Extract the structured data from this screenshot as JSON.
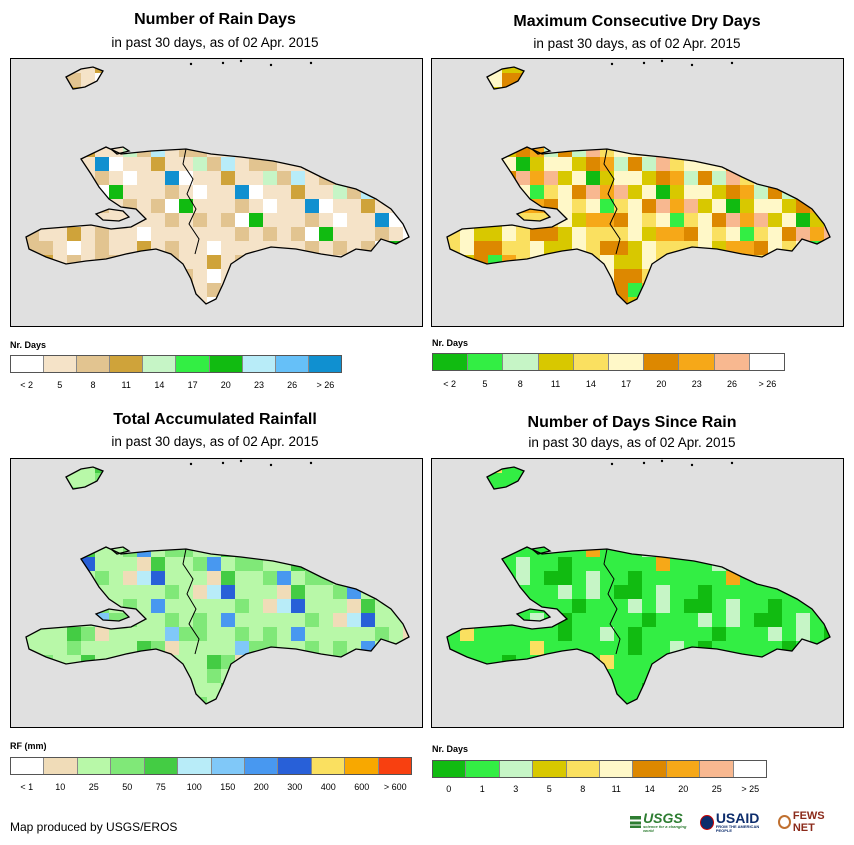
{
  "panels": [
    {
      "id": "rain-days",
      "title": "Number of Rain Days",
      "subtitle": "in past 30 days, as of 02 Apr. 2015",
      "legend_label": "Nr. Days",
      "legend_colors": [
        "#ffffff",
        "#f5e3c8",
        "#e2c490",
        "#cfa33a",
        "#c6f5c6",
        "#33ee44",
        "#11bb11",
        "#b8ecf8",
        "#66c0f8",
        "#1090d0"
      ],
      "legend_ticks": [
        "< 2",
        "5",
        "8",
        "11",
        "14",
        "17",
        "20",
        "23",
        "26",
        "> 26"
      ],
      "cell_palette": [
        "#ffffff",
        "#f5e3c8",
        "#e2c490",
        "#cfa33a",
        "#c6f5c6",
        "#33ee44",
        "#11bb11",
        "#b8ecf8",
        "#1090d0"
      ],
      "pattern": [
        1,
        1,
        2,
        1,
        1,
        2,
        1,
        0,
        1,
        1,
        2,
        3,
        1,
        1,
        1,
        0,
        2,
        1,
        1,
        1,
        3,
        2,
        1,
        1,
        0,
        1,
        2,
        1,
        1,
        1,
        2,
        1,
        4,
        1,
        2,
        1,
        1,
        0,
        1,
        2,
        1,
        1,
        3,
        1,
        6,
        8,
        7,
        5,
        2,
        1,
        1,
        1,
        0,
        1,
        1,
        2,
        2,
        1,
        1,
        1,
        2,
        0
      ]
    },
    {
      "id": "dry-days",
      "title": "Maximum Consecutive Dry Days",
      "subtitle": "in past 30 days, as of 02 Apr. 2015",
      "legend_label": "Nr. Days",
      "legend_colors": [
        "#11bb11",
        "#33ee44",
        "#c6f5c6",
        "#d8c800",
        "#fae060",
        "#fff8c8",
        "#dd8800",
        "#f6a818",
        "#f8b890",
        "#ffffff"
      ],
      "legend_ticks": [
        "< 2",
        "5",
        "8",
        "11",
        "14",
        "17",
        "20",
        "23",
        "26",
        "> 26"
      ],
      "cell_palette": [
        "#11bb11",
        "#33ee44",
        "#c6f5c6",
        "#d8c800",
        "#fae060",
        "#fff8c8",
        "#dd8800",
        "#f6a818",
        "#f8b890",
        "#ffffff"
      ],
      "pattern": [
        6,
        6,
        7,
        6,
        5,
        5,
        4,
        6,
        6,
        7,
        8,
        3,
        5,
        5,
        4,
        3,
        6,
        7,
        6,
        5,
        3,
        4,
        5,
        5,
        8,
        7,
        6,
        6,
        5,
        4,
        4,
        3,
        2,
        0,
        1,
        3,
        4,
        5,
        5,
        6,
        8,
        7,
        3,
        4,
        1,
        0,
        2,
        3,
        4,
        5,
        5,
        4,
        3,
        8,
        6,
        5,
        4,
        3,
        5,
        5,
        4,
        3
      ]
    },
    {
      "id": "total-rainfall",
      "title": "Total Accumulated Rainfall",
      "subtitle": "in past 30 days, as of 02 Apr. 2015",
      "legend_label": "RF (mm)",
      "legend_colors": [
        "#ffffff",
        "#f0dcb8",
        "#b8f8a8",
        "#80e878",
        "#44cc44",
        "#b8ecf8",
        "#80c8f8",
        "#4898f0",
        "#2860d8",
        "#fae060",
        "#f8a800",
        "#f84010"
      ],
      "legend_ticks": [
        "< 1",
        "10",
        "25",
        "50",
        "75",
        "100",
        "150",
        "200",
        "300",
        "400",
        "600",
        "> 600"
      ],
      "cell_palette": [
        "#f0dcb8",
        "#b8f8a8",
        "#80e878",
        "#44cc44",
        "#b8ecf8",
        "#80c8f8",
        "#4898f0",
        "#2860d8"
      ],
      "pattern": [
        1,
        1,
        2,
        1,
        0,
        1,
        1,
        2,
        1,
        1,
        2,
        3,
        1,
        0,
        1,
        1,
        2,
        1,
        1,
        3,
        2,
        1,
        1,
        1,
        0,
        1,
        2,
        1,
        1,
        5,
        6,
        4,
        2,
        1,
        1,
        1,
        2,
        1,
        7,
        6,
        5,
        3,
        3,
        2,
        1,
        1,
        1,
        0,
        1,
        2,
        1,
        1,
        1,
        2,
        2,
        1,
        0,
        1,
        1,
        1,
        2,
        1
      ]
    },
    {
      "id": "days-since-rain",
      "title": "Number of Days Since Rain",
      "subtitle": "in past 30 days, as of 02 Apr. 2015",
      "legend_label": "Nr. Days",
      "legend_colors": [
        "#11bb11",
        "#33ee44",
        "#c6f5c6",
        "#d8c800",
        "#fae060",
        "#fff8c8",
        "#dd8800",
        "#f6a818",
        "#f8b890",
        "#ffffff"
      ],
      "legend_ticks": [
        "0",
        "1",
        "3",
        "5",
        "8",
        "11",
        "14",
        "20",
        "25",
        "> 25"
      ],
      "cell_palette": [
        "#11bb11",
        "#33ee44",
        "#c6f5c6",
        "#fae060",
        "#f6a818"
      ],
      "pattern": [
        1,
        1,
        1,
        1,
        0,
        1,
        1,
        1,
        1,
        1,
        2,
        1,
        1,
        1,
        1,
        0,
        1,
        1,
        1,
        2,
        1,
        1,
        1,
        1,
        0,
        1,
        1,
        1,
        3,
        1,
        0,
        0,
        1,
        1,
        1,
        1,
        2,
        1,
        1,
        1,
        0,
        0,
        1,
        1,
        1,
        2,
        1,
        1,
        1,
        1,
        0,
        1,
        1,
        4,
        1,
        1,
        1,
        1,
        2,
        1,
        1,
        1
      ]
    }
  ],
  "credit": "Map produced by USGS/EROS",
  "logos": {
    "usgs": "USGS",
    "usgs_tag": "science for a changing world",
    "usaid": "USAID",
    "usaid_tag": "FROM THE AMERICAN PEOPLE",
    "fews": "FEWS NET"
  }
}
